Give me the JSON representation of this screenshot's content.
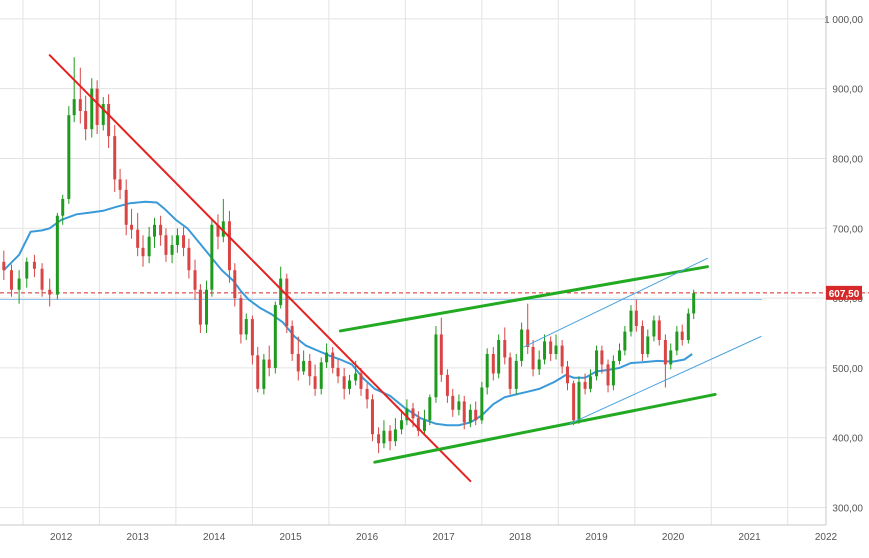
{
  "chart_data": {
    "type": "candlestick",
    "x_axis": {
      "ticks": [
        "2012",
        "2013",
        "2014",
        "2015",
        "2016",
        "2017",
        "2018",
        "2019",
        "2020",
        "2021",
        "2022"
      ],
      "range": [
        2011.7,
        2022.5
      ]
    },
    "y_axis": {
      "ticks": [
        "300,00",
        "400,00",
        "500,00",
        "600,00",
        "700,00",
        "800,00",
        "900,00",
        "1 000,00"
      ],
      "range": [
        275,
        1027
      ],
      "position": "right"
    },
    "last_price": {
      "label": "607,50",
      "value": 607.5,
      "color": "#d62828"
    },
    "colors": {
      "up": "#1f9a1f",
      "down": "#d94545",
      "ma": "#3a9ad9",
      "grid": "#e3e3e3",
      "downtrend": "#e52222",
      "channel": "#22aa22",
      "thin_channel": "#4aa3df"
    },
    "horizontal_lines": [
      {
        "value": 607.5,
        "style": "dashed",
        "color": "#d62828"
      },
      {
        "value": 598,
        "style": "solid",
        "color": "#8fc3ee"
      }
    ],
    "trend_lines": [
      {
        "name": "",
        "points": [
          [
            2012.35,
            948
          ],
          [
            2017.85,
            338
          ]
        ],
        "color": "#e52222",
        "width": 2
      },
      {
        "name": "",
        "points": [
          [
            2016.6,
            365
          ],
          [
            2021.05,
            462
          ]
        ],
        "color": "#22aa22",
        "width": 3
      },
      {
        "name": "",
        "points": [
          [
            2016.15,
            553
          ],
          [
            2020.95,
            645
          ]
        ],
        "color": "#22aa22",
        "width": 3
      },
      {
        "name": "",
        "points": [
          [
            2018.55,
            530
          ],
          [
            2020.95,
            657
          ]
        ],
        "color": "#4aa3df",
        "width": 1
      },
      {
        "name": "",
        "points": [
          [
            2019.15,
            420
          ],
          [
            2021.65,
            545
          ]
        ],
        "color": "#4aa3df",
        "width": 1
      }
    ],
    "moving_average": [
      [
        2011.75,
        640
      ],
      [
        2011.95,
        662
      ],
      [
        2012.1,
        695
      ],
      [
        2012.25,
        697
      ],
      [
        2012.35,
        700
      ],
      [
        2012.5,
        712
      ],
      [
        2012.7,
        720
      ],
      [
        2012.85,
        722
      ],
      [
        2013.05,
        725
      ],
      [
        2013.2,
        730
      ],
      [
        2013.4,
        736
      ],
      [
        2013.6,
        738
      ],
      [
        2013.75,
        737
      ],
      [
        2013.85,
        728
      ],
      [
        2014.0,
        712
      ],
      [
        2014.15,
        700
      ],
      [
        2014.3,
        680
      ],
      [
        2014.45,
        660
      ],
      [
        2014.6,
        640
      ],
      [
        2014.75,
        625
      ],
      [
        2014.85,
        610
      ],
      [
        2014.95,
        598
      ],
      [
        2015.1,
        586
      ],
      [
        2015.25,
        577
      ],
      [
        2015.4,
        565
      ],
      [
        2015.55,
        545
      ],
      [
        2015.7,
        532
      ],
      [
        2015.85,
        525
      ],
      [
        2016.0,
        518
      ],
      [
        2016.15,
        512
      ],
      [
        2016.3,
        505
      ],
      [
        2016.45,
        485
      ],
      [
        2016.6,
        470
      ],
      [
        2016.8,
        460
      ],
      [
        2017.0,
        442
      ],
      [
        2017.2,
        428
      ],
      [
        2017.4,
        420
      ],
      [
        2017.55,
        418
      ],
      [
        2017.7,
        418
      ],
      [
        2017.85,
        422
      ],
      [
        2018.0,
        432
      ],
      [
        2018.15,
        448
      ],
      [
        2018.3,
        458
      ],
      [
        2018.45,
        462
      ],
      [
        2018.6,
        466
      ],
      [
        2018.75,
        470
      ],
      [
        2018.95,
        480
      ],
      [
        2019.1,
        490
      ],
      [
        2019.2,
        486
      ],
      [
        2019.35,
        486
      ],
      [
        2019.5,
        495
      ],
      [
        2019.65,
        497
      ],
      [
        2019.8,
        500
      ],
      [
        2019.95,
        507
      ],
      [
        2020.1,
        508
      ],
      [
        2020.3,
        510
      ],
      [
        2020.5,
        509
      ],
      [
        2020.65,
        512
      ],
      [
        2020.75,
        520
      ]
    ],
    "candles": [
      [
        2011.75,
        652,
        640,
        668,
        626
      ],
      [
        2011.85,
        640,
        612,
        648,
        602
      ],
      [
        2011.95,
        612,
        628,
        640,
        592
      ],
      [
        2012.05,
        628,
        652,
        658,
        615
      ],
      [
        2012.15,
        652,
        642,
        662,
        630
      ],
      [
        2012.25,
        642,
        612,
        650,
        602
      ],
      [
        2012.35,
        612,
        605,
        628,
        588
      ],
      [
        2012.45,
        605,
        718,
        722,
        598
      ],
      [
        2012.52,
        718,
        742,
        748,
        705
      ],
      [
        2012.6,
        742,
        862,
        875,
        735
      ],
      [
        2012.67,
        862,
        885,
        945,
        852
      ],
      [
        2012.75,
        885,
        868,
        930,
        850
      ],
      [
        2012.82,
        868,
        842,
        890,
        826
      ],
      [
        2012.9,
        842,
        900,
        915,
        830
      ],
      [
        2012.97,
        900,
        848,
        912,
        835
      ],
      [
        2013.05,
        848,
        878,
        888,
        840
      ],
      [
        2013.12,
        878,
        832,
        892,
        815
      ],
      [
        2013.2,
        832,
        770,
        848,
        752
      ],
      [
        2013.27,
        770,
        755,
        785,
        742
      ],
      [
        2013.35,
        755,
        705,
        770,
        690
      ],
      [
        2013.42,
        705,
        698,
        728,
        685
      ],
      [
        2013.5,
        698,
        672,
        722,
        660
      ],
      [
        2013.57,
        672,
        660,
        690,
        645
      ],
      [
        2013.65,
        660,
        688,
        702,
        650
      ],
      [
        2013.72,
        688,
        705,
        715,
        672
      ],
      [
        2013.8,
        705,
        690,
        718,
        675
      ],
      [
        2013.87,
        690,
        662,
        700,
        652
      ],
      [
        2013.95,
        662,
        676,
        690,
        650
      ],
      [
        2014.02,
        676,
        690,
        700,
        665
      ],
      [
        2014.1,
        690,
        672,
        702,
        660
      ],
      [
        2014.17,
        672,
        640,
        685,
        628
      ],
      [
        2014.25,
        640,
        612,
        655,
        598
      ],
      [
        2014.32,
        612,
        562,
        620,
        550
      ],
      [
        2014.4,
        562,
        612,
        625,
        550
      ],
      [
        2014.47,
        612,
        705,
        712,
        602
      ],
      [
        2014.55,
        705,
        688,
        720,
        670
      ],
      [
        2014.62,
        688,
        710,
        742,
        680
      ],
      [
        2014.7,
        710,
        640,
        725,
        622
      ],
      [
        2014.77,
        640,
        600,
        650,
        588
      ],
      [
        2014.85,
        600,
        548,
        605,
        535
      ],
      [
        2014.92,
        548,
        570,
        578,
        540
      ],
      [
        2015.0,
        570,
        518,
        575,
        505
      ],
      [
        2015.07,
        518,
        470,
        530,
        465
      ],
      [
        2015.15,
        470,
        512,
        520,
        462
      ],
      [
        2015.22,
        512,
        500,
        532,
        488
      ],
      [
        2015.3,
        500,
        590,
        595,
        492
      ],
      [
        2015.37,
        590,
        628,
        645,
        585
      ],
      [
        2015.45,
        628,
        560,
        635,
        550
      ],
      [
        2015.52,
        560,
        520,
        568,
        510
      ],
      [
        2015.6,
        520,
        495,
        545,
        482
      ],
      [
        2015.67,
        495,
        510,
        525,
        490
      ],
      [
        2015.75,
        510,
        488,
        520,
        475
      ],
      [
        2015.82,
        488,
        470,
        505,
        460
      ],
      [
        2015.9,
        470,
        508,
        515,
        462
      ],
      [
        2015.97,
        508,
        522,
        535,
        500
      ],
      [
        2016.05,
        522,
        500,
        530,
        492
      ],
      [
        2016.12,
        500,
        488,
        512,
        478
      ],
      [
        2016.2,
        488,
        470,
        500,
        455
      ],
      [
        2016.27,
        470,
        482,
        490,
        462
      ],
      [
        2016.35,
        482,
        492,
        510,
        475
      ],
      [
        2016.42,
        492,
        470,
        500,
        460
      ],
      [
        2016.5,
        470,
        455,
        478,
        442
      ],
      [
        2016.57,
        455,
        405,
        462,
        395
      ],
      [
        2016.65,
        405,
        392,
        415,
        378
      ],
      [
        2016.72,
        392,
        410,
        425,
        385
      ],
      [
        2016.8,
        410,
        395,
        418,
        382
      ],
      [
        2016.87,
        395,
        412,
        428,
        388
      ],
      [
        2016.95,
        412,
        425,
        440,
        405
      ],
      [
        2017.02,
        425,
        442,
        455,
        418
      ],
      [
        2017.1,
        442,
        428,
        450,
        415
      ],
      [
        2017.17,
        428,
        410,
        438,
        402
      ],
      [
        2017.25,
        410,
        425,
        440,
        405
      ],
      [
        2017.32,
        425,
        458,
        462,
        418
      ],
      [
        2017.4,
        458,
        548,
        560,
        450
      ],
      [
        2017.47,
        548,
        490,
        572,
        480
      ],
      [
        2017.55,
        490,
        460,
        498,
        450
      ],
      [
        2017.62,
        460,
        440,
        470,
        430
      ],
      [
        2017.7,
        440,
        452,
        462,
        432
      ],
      [
        2017.77,
        452,
        422,
        460,
        412
      ],
      [
        2017.85,
        422,
        440,
        448,
        415
      ],
      [
        2017.92,
        440,
        425,
        452,
        418
      ],
      [
        2018.0,
        425,
        472,
        480,
        420
      ],
      [
        2018.07,
        472,
        520,
        528,
        462
      ],
      [
        2018.15,
        520,
        492,
        530,
        482
      ],
      [
        2018.22,
        492,
        540,
        548,
        485
      ],
      [
        2018.3,
        540,
        515,
        558,
        505
      ],
      [
        2018.37,
        515,
        470,
        522,
        462
      ],
      [
        2018.45,
        470,
        510,
        520,
        462
      ],
      [
        2018.52,
        510,
        555,
        565,
        502
      ],
      [
        2018.6,
        555,
        530,
        592,
        520
      ],
      [
        2018.67,
        530,
        498,
        540,
        488
      ],
      [
        2018.75,
        498,
        512,
        525,
        490
      ],
      [
        2018.82,
        512,
        538,
        548,
        505
      ],
      [
        2018.9,
        538,
        520,
        545,
        510
      ],
      [
        2018.97,
        520,
        532,
        548,
        512
      ],
      [
        2019.05,
        532,
        502,
        540,
        492
      ],
      [
        2019.12,
        502,
        478,
        510,
        468
      ],
      [
        2019.2,
        478,
        425,
        482,
        418
      ],
      [
        2019.27,
        425,
        480,
        488,
        420
      ],
      [
        2019.35,
        480,
        470,
        492,
        462
      ],
      [
        2019.42,
        470,
        488,
        498,
        465
      ],
      [
        2019.5,
        488,
        525,
        532,
        482
      ],
      [
        2019.57,
        525,
        505,
        532,
        492
      ],
      [
        2019.65,
        505,
        475,
        512,
        465
      ],
      [
        2019.72,
        475,
        510,
        518,
        468
      ],
      [
        2019.8,
        510,
        525,
        535,
        505
      ],
      [
        2019.87,
        525,
        552,
        560,
        518
      ],
      [
        2019.95,
        552,
        582,
        590,
        545
      ],
      [
        2020.02,
        582,
        560,
        598,
        552
      ],
      [
        2020.1,
        560,
        520,
        568,
        510
      ],
      [
        2020.17,
        520,
        545,
        555,
        515
      ],
      [
        2020.25,
        545,
        568,
        575,
        538
      ],
      [
        2020.32,
        568,
        540,
        575,
        532
      ],
      [
        2020.4,
        540,
        505,
        548,
        472
      ],
      [
        2020.47,
        505,
        525,
        535,
        498
      ],
      [
        2020.55,
        525,
        552,
        560,
        518
      ],
      [
        2020.62,
        552,
        540,
        562,
        532
      ],
      [
        2020.7,
        540,
        578,
        585,
        535
      ],
      [
        2020.77,
        578,
        607,
        612,
        570
      ]
    ]
  }
}
